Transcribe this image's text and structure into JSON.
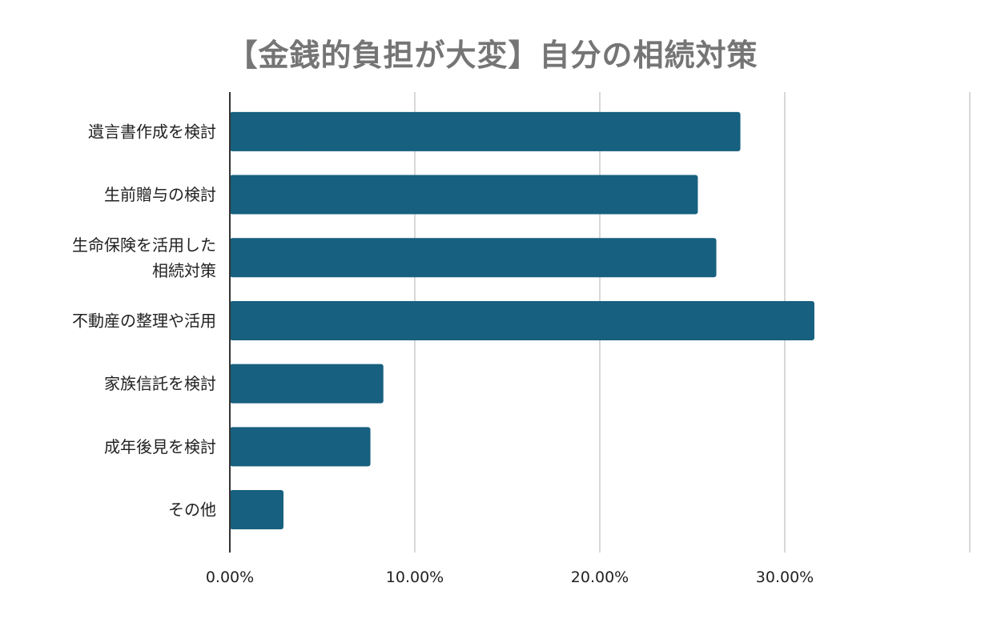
{
  "chart_data": {
    "type": "bar",
    "orientation": "horizontal",
    "title": "【金銭的負担が大変】自分の相続対策",
    "categories": [
      [
        "遺言書作成を検討"
      ],
      [
        "生前贈与の検討"
      ],
      [
        "生命保険を活用した",
        "相続対策"
      ],
      [
        "不動産の整理や活用"
      ],
      [
        "家族信託を検討"
      ],
      [
        "成年後見を検討"
      ],
      [
        "その他"
      ]
    ],
    "values": [
      0.276,
      0.253,
      0.263,
      0.316,
      0.083,
      0.076,
      0.029
    ],
    "xlim": [
      0,
      0.4
    ],
    "xticks": [
      0,
      0.1,
      0.2,
      0.3
    ],
    "xtick_labels": [
      "0.00%",
      "10.00%",
      "20.00%",
      "30.00%"
    ],
    "xlabel": "",
    "ylabel": "",
    "grid": true,
    "colors": {
      "bar": "#17607f",
      "grid": "#cccccc",
      "axis": "#333333"
    }
  }
}
